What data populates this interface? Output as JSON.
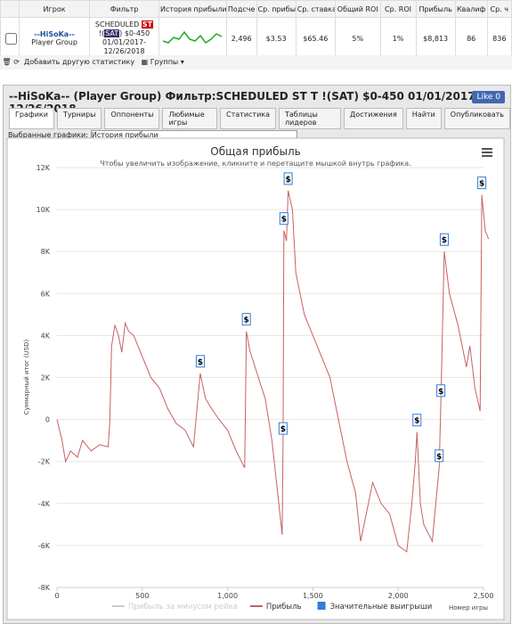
{
  "table": {
    "headers": [
      "Игрок",
      "Фильтр",
      "История прибыли",
      "Подсче",
      "Ср. прибыл",
      "Ср. ставка",
      "Общий ROI",
      "Ср. ROI",
      "Прибыль",
      "Квалиф",
      "Ср. ч"
    ],
    "row": {
      "player": "--HiSoKa--",
      "group": "Player Group",
      "filter_1": "SCHEDULED",
      "badge_st": "ST",
      "filter_2a": "!(",
      "badge_sat": "SAT",
      "filter_2b": ") $0-450",
      "filter_3": "01/01/2017-",
      "filter_4": "12/26/2018",
      "cells": [
        "2,496",
        "$3.53",
        "$65.46",
        "5%",
        "1%",
        "$8,813",
        "86",
        "836"
      ]
    }
  },
  "toolbar": {
    "add": "Добавить другую статистику",
    "groups": "Группы"
  },
  "header": {
    "title": "--HiSoKa-- (Player Group) Фильтр:SCHEDULED ST T !(SAT) $0-450 01/01/2017-12/26/2018",
    "like": "Like 0"
  },
  "tabs": [
    "Графики",
    "Турниры",
    "Оппоненты",
    "Любимые игры",
    "Статистика",
    "Таблицы лидеров",
    "Достижения",
    "Найти",
    "Опубликовать"
  ],
  "selector": {
    "label": "Выбранные графики:",
    "value": "История прибыли"
  },
  "chart_data": {
    "type": "line",
    "title": "Общая прибыль",
    "subtitle": "Чтобы увеличить изображение, кликните и перетащите мышкой внутрь графика.",
    "y_label": "Суммарный итог (USD)",
    "x_label": "Номер игры",
    "xlim": [
      0,
      2500
    ],
    "ylim": [
      -8000,
      12000
    ],
    "xticks": [
      0,
      500,
      {
        "value": 1000,
        "label": "1,000"
      },
      {
        "value": 1500,
        "label": "1,500"
      },
      {
        "value": 2000,
        "label": "2,000"
      },
      {
        "value": 2500,
        "label": "2,500"
      }
    ],
    "yticks": [
      {
        "value": -8000,
        "label": "-8K"
      },
      {
        "value": -6000,
        "label": "-6K"
      },
      {
        "value": -4000,
        "label": "-4K"
      },
      {
        "value": -2000,
        "label": "-2K"
      },
      0,
      {
        "value": 2000,
        "label": "2K"
      },
      {
        "value": 4000,
        "label": "4K"
      },
      {
        "value": 6000,
        "label": "6K"
      },
      {
        "value": 8000,
        "label": "8K"
      },
      {
        "value": 10000,
        "label": "10K"
      },
      {
        "value": 12000,
        "label": "12K"
      }
    ],
    "grid": true,
    "series": [
      {
        "name": "Прибыль за минусом рейка",
        "color": "#cccccc",
        "visible": false
      },
      {
        "name": "Прибыль",
        "color": "#c86060",
        "x": [
          0,
          30,
          50,
          80,
          120,
          150,
          200,
          250,
          300,
          310,
          320,
          340,
          360,
          380,
          400,
          420,
          450,
          500,
          550,
          600,
          650,
          700,
          750,
          800,
          840,
          870,
          900,
          950,
          1000,
          1050,
          1100,
          1110,
          1130,
          1180,
          1220,
          1260,
          1300,
          1320,
          1325,
          1330,
          1345,
          1355,
          1380,
          1400,
          1450,
          1500,
          1550,
          1600,
          1650,
          1700,
          1750,
          1780,
          1800,
          1850,
          1900,
          1950,
          2000,
          2050,
          2080,
          2100,
          2110,
          2130,
          2150,
          2200,
          2220,
          2240,
          2250,
          2270,
          2300,
          2350,
          2400,
          2420,
          2450,
          2480,
          2490,
          2510,
          2530
        ],
        "values": [
          0,
          -1000,
          -2000,
          -1500,
          -1800,
          -1000,
          -1500,
          -1200,
          -1300,
          0,
          3500,
          4500,
          4000,
          3200,
          4600,
          4200,
          4000,
          3000,
          2000,
          1500,
          500,
          -200,
          -500,
          -1300,
          2200,
          1000,
          600,
          0,
          -500,
          -1500,
          -2300,
          4200,
          3300,
          2000,
          1000,
          -1000,
          -4000,
          -5500,
          -1000,
          9000,
          8500,
          10900,
          10000,
          7000,
          5000,
          4000,
          3000,
          2000,
          0,
          -2000,
          -3500,
          -5800,
          -5000,
          -3000,
          -4000,
          -4500,
          -6000,
          -6300,
          -4000,
          -2000,
          -600,
          -4000,
          -5000,
          -5800,
          -4000,
          -2300,
          800,
          8000,
          6000,
          4500,
          2500,
          3500,
          1500,
          400,
          10700,
          9000,
          8600
        ]
      },
      {
        "name": "Значительные выигрыши",
        "color": "#2f7ed8",
        "marker_label": "$",
        "x": [
          840,
          1110,
          1325,
          1330,
          1355,
          2110,
          2240,
          2250,
          2270,
          2490
        ],
        "values": [
          2200,
          4200,
          -1000,
          9000,
          10900,
          -600,
          -2300,
          800,
          8000,
          10700
        ]
      }
    ]
  }
}
